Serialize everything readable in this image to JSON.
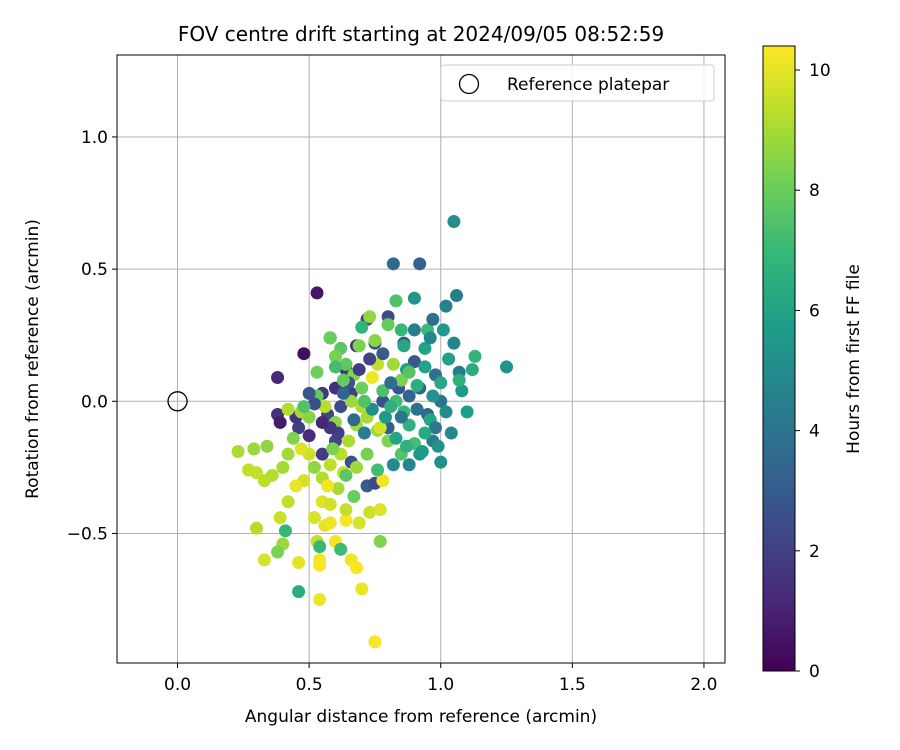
{
  "chart_data": {
    "type": "scatter",
    "title": "FOV centre drift starting at 2024/09/05 08:52:59",
    "xlabel": "Angular distance from reference (arcmin)",
    "ylabel": "Rotation from reference (arcmin)",
    "xlim": [
      -0.23,
      2.08
    ],
    "ylim": [
      -0.99,
      1.31
    ],
    "xticks": [
      0.0,
      0.5,
      1.0,
      1.5,
      2.0
    ],
    "xtick_labels": [
      "0.0",
      "0.5",
      "1.0",
      "1.5",
      "2.0"
    ],
    "yticks": [
      -0.5,
      0.0,
      0.5,
      1.0
    ],
    "ytick_labels": [
      "−0.5",
      "0.0",
      "0.5",
      "1.0"
    ],
    "grid": true,
    "legend": {
      "placement": "top-right",
      "entries": [
        "Reference platepar"
      ]
    },
    "reference_point": {
      "x": 0.0,
      "y": 0.0,
      "marker": "open-circle",
      "color": "#000000"
    },
    "colorbar": {
      "label": "Hours from first FF file",
      "min": 0,
      "max": 10.4,
      "ticks": [
        0,
        2,
        4,
        6,
        8,
        10
      ],
      "tick_labels": [
        "0",
        "2",
        "4",
        "6",
        "8",
        "10"
      ],
      "colormap": "viridis",
      "colors": [
        "#440154",
        "#482878",
        "#3e4989",
        "#31688e",
        "#26828e",
        "#1f9e89",
        "#35b779",
        "#6ece58",
        "#b5de2b",
        "#fde725"
      ]
    },
    "points": [
      {
        "x": 0.53,
        "y": 0.41,
        "c": 0.6
      },
      {
        "x": 0.48,
        "y": 0.18,
        "c": 0.4
      },
      {
        "x": 0.38,
        "y": 0.09,
        "c": 1.2
      },
      {
        "x": 0.38,
        "y": -0.05,
        "c": 1.5
      },
      {
        "x": 0.39,
        "y": -0.08,
        "c": 0.8
      },
      {
        "x": 0.45,
        "y": -0.06,
        "c": 1.6
      },
      {
        "x": 0.46,
        "y": -0.1,
        "c": 1.9
      },
      {
        "x": 0.5,
        "y": -0.13,
        "c": 1.3
      },
      {
        "x": 0.55,
        "y": 0.03,
        "c": 1.7
      },
      {
        "x": 0.57,
        "y": -0.05,
        "c": 2.1
      },
      {
        "x": 0.6,
        "y": 0.05,
        "c": 1.4
      },
      {
        "x": 0.62,
        "y": -0.02,
        "c": 2.3
      },
      {
        "x": 0.64,
        "y": 0.12,
        "c": 1.8
      },
      {
        "x": 0.66,
        "y": 0.03,
        "c": 2.0
      },
      {
        "x": 0.68,
        "y": 0.21,
        "c": 1.5
      },
      {
        "x": 0.58,
        "y": 0.24,
        "c": 2.2
      },
      {
        "x": 0.55,
        "y": -0.2,
        "c": 1.9
      },
      {
        "x": 0.6,
        "y": -0.15,
        "c": 2.4
      },
      {
        "x": 0.66,
        "y": -0.23,
        "c": 2.6
      },
      {
        "x": 0.72,
        "y": 0.31,
        "c": 2.1
      },
      {
        "x": 0.75,
        "y": 0.22,
        "c": 2.5
      },
      {
        "x": 0.8,
        "y": 0.32,
        "c": 2.4
      },
      {
        "x": 0.82,
        "y": 0.52,
        "c": 3.6
      },
      {
        "x": 0.92,
        "y": 0.52,
        "c": 3.2
      },
      {
        "x": 0.86,
        "y": 0.22,
        "c": 2.7
      },
      {
        "x": 0.9,
        "y": 0.15,
        "c": 2.9
      },
      {
        "x": 0.84,
        "y": 0.05,
        "c": 2.8
      },
      {
        "x": 0.78,
        "y": 0.0,
        "c": 2.6
      },
      {
        "x": 0.8,
        "y": -0.1,
        "c": 3.1
      },
      {
        "x": 0.72,
        "y": -0.32,
        "c": 3.0
      },
      {
        "x": 0.75,
        "y": -0.31,
        "c": 2.3
      },
      {
        "x": 0.92,
        "y": 0.05,
        "c": 3.3
      },
      {
        "x": 0.95,
        "y": -0.05,
        "c": 3.5
      },
      {
        "x": 0.98,
        "y": 0.1,
        "c": 3.8
      },
      {
        "x": 1.0,
        "y": 0.0,
        "c": 4.0
      },
      {
        "x": 1.02,
        "y": 0.36,
        "c": 4.6
      },
      {
        "x": 1.06,
        "y": 0.4,
        "c": 4.5
      },
      {
        "x": 1.05,
        "y": 0.22,
        "c": 4.7
      },
      {
        "x": 1.07,
        "y": 0.11,
        "c": 4.3
      },
      {
        "x": 1.04,
        "y": -0.12,
        "c": 4.9
      },
      {
        "x": 0.97,
        "y": -0.15,
        "c": 4.4
      },
      {
        "x": 1.0,
        "y": -0.23,
        "c": 5.2
      },
      {
        "x": 0.92,
        "y": -0.2,
        "c": 5.5
      },
      {
        "x": 0.88,
        "y": -0.24,
        "c": 4.8
      },
      {
        "x": 0.82,
        "y": -0.24,
        "c": 5.0
      },
      {
        "x": 1.05,
        "y": 0.68,
        "c": 5.1
      },
      {
        "x": 1.25,
        "y": 0.13,
        "c": 5.3
      },
      {
        "x": 1.08,
        "y": 0.04,
        "c": 5.6
      },
      {
        "x": 1.1,
        "y": -0.04,
        "c": 5.8
      },
      {
        "x": 0.9,
        "y": 0.39,
        "c": 5.4
      },
      {
        "x": 0.87,
        "y": 0.12,
        "c": 5.7
      },
      {
        "x": 0.94,
        "y": 0.2,
        "c": 6.0
      },
      {
        "x": 0.96,
        "y": -0.07,
        "c": 6.1
      },
      {
        "x": 1.12,
        "y": 0.12,
        "c": 6.4
      },
      {
        "x": 1.13,
        "y": 0.17,
        "c": 6.8
      },
      {
        "x": 1.07,
        "y": 0.08,
        "c": 6.6
      },
      {
        "x": 0.95,
        "y": 0.27,
        "c": 7.1
      },
      {
        "x": 0.85,
        "y": 0.27,
        "c": 6.9
      },
      {
        "x": 0.83,
        "y": 0.38,
        "c": 7.5
      },
      {
        "x": 0.8,
        "y": 0.29,
        "c": 7.9
      },
      {
        "x": 0.73,
        "y": 0.32,
        "c": 8.7
      },
      {
        "x": 0.75,
        "y": 0.23,
        "c": 8.6
      },
      {
        "x": 0.69,
        "y": 0.21,
        "c": 8.3
      },
      {
        "x": 0.62,
        "y": 0.2,
        "c": 7.7
      },
      {
        "x": 0.58,
        "y": 0.24,
        "c": 8.0
      },
      {
        "x": 0.6,
        "y": 0.17,
        "c": 8.2
      },
      {
        "x": 0.64,
        "y": 0.14,
        "c": 7.8
      },
      {
        "x": 0.67,
        "y": 0.1,
        "c": 8.5
      },
      {
        "x": 0.7,
        "y": 0.05,
        "c": 8.1
      },
      {
        "x": 0.74,
        "y": 0.09,
        "c": 10.2
      },
      {
        "x": 0.78,
        "y": 0.04,
        "c": 7.4
      },
      {
        "x": 0.83,
        "y": 0.0,
        "c": 7.2
      },
      {
        "x": 0.86,
        "y": -0.04,
        "c": 7.0
      },
      {
        "x": 0.88,
        "y": -0.09,
        "c": 6.7
      },
      {
        "x": 0.9,
        "y": -0.16,
        "c": 7.3
      },
      {
        "x": 0.85,
        "y": -0.2,
        "c": 7.6
      },
      {
        "x": 0.8,
        "y": -0.15,
        "c": 8.4
      },
      {
        "x": 0.76,
        "y": -0.11,
        "c": 8.8
      },
      {
        "x": 0.72,
        "y": -0.06,
        "c": 9.0
      },
      {
        "x": 0.68,
        "y": -0.09,
        "c": 8.9
      },
      {
        "x": 0.65,
        "y": -0.15,
        "c": 9.1
      },
      {
        "x": 0.62,
        "y": -0.2,
        "c": 9.3
      },
      {
        "x": 0.58,
        "y": -0.24,
        "c": 9.4
      },
      {
        "x": 0.55,
        "y": -0.29,
        "c": 9.2
      },
      {
        "x": 0.52,
        "y": -0.25,
        "c": 8.7
      },
      {
        "x": 0.5,
        "y": -0.2,
        "c": 9.6
      },
      {
        "x": 0.47,
        "y": -0.18,
        "c": 9.9
      },
      {
        "x": 0.44,
        "y": -0.14,
        "c": 8.4
      },
      {
        "x": 0.42,
        "y": -0.2,
        "c": 8.9
      },
      {
        "x": 0.4,
        "y": -0.25,
        "c": 9.0
      },
      {
        "x": 0.36,
        "y": -0.28,
        "c": 9.2
      },
      {
        "x": 0.33,
        "y": -0.3,
        "c": 9.3
      },
      {
        "x": 0.3,
        "y": -0.27,
        "c": 9.5
      },
      {
        "x": 0.27,
        "y": -0.26,
        "c": 9.4
      },
      {
        "x": 0.23,
        "y": -0.19,
        "c": 9.1
      },
      {
        "x": 0.29,
        "y": -0.18,
        "c": 8.8
      },
      {
        "x": 0.34,
        "y": -0.17,
        "c": 8.6
      },
      {
        "x": 0.42,
        "y": -0.03,
        "c": 9.2
      },
      {
        "x": 0.47,
        "y": -0.04,
        "c": 9.0
      },
      {
        "x": 0.5,
        "y": -0.06,
        "c": 8.5
      },
      {
        "x": 0.53,
        "y": 0.02,
        "c": 7.9
      },
      {
        "x": 0.53,
        "y": 0.11,
        "c": 8.1
      },
      {
        "x": 0.56,
        "y": -0.02,
        "c": 9.3
      },
      {
        "x": 0.48,
        "y": -0.3,
        "c": 9.7
      },
      {
        "x": 0.45,
        "y": -0.32,
        "c": 10.1
      },
      {
        "x": 0.42,
        "y": -0.38,
        "c": 9.4
      },
      {
        "x": 0.39,
        "y": -0.44,
        "c": 9.6
      },
      {
        "x": 0.3,
        "y": -0.48,
        "c": 9.2
      },
      {
        "x": 0.33,
        "y": -0.6,
        "c": 9.8
      },
      {
        "x": 0.4,
        "y": -0.54,
        "c": 8.8
      },
      {
        "x": 0.38,
        "y": -0.57,
        "c": 8.3
      },
      {
        "x": 0.41,
        "y": -0.49,
        "c": 6.9
      },
      {
        "x": 0.46,
        "y": -0.61,
        "c": 10.0
      },
      {
        "x": 0.46,
        "y": -0.72,
        "c": 6.4
      },
      {
        "x": 0.53,
        "y": -0.53,
        "c": 9.5
      },
      {
        "x": 0.54,
        "y": -0.55,
        "c": 7.0
      },
      {
        "x": 0.54,
        "y": -0.6,
        "c": 10.2
      },
      {
        "x": 0.54,
        "y": -0.62,
        "c": 10.3
      },
      {
        "x": 0.54,
        "y": -0.75,
        "c": 10.1
      },
      {
        "x": 0.56,
        "y": -0.47,
        "c": 10.0
      },
      {
        "x": 0.52,
        "y": -0.44,
        "c": 9.8
      },
      {
        "x": 0.55,
        "y": -0.38,
        "c": 9.9
      },
      {
        "x": 0.58,
        "y": -0.46,
        "c": 10.1
      },
      {
        "x": 0.58,
        "y": -0.39,
        "c": 9.7
      },
      {
        "x": 0.6,
        "y": -0.53,
        "c": 10.2
      },
      {
        "x": 0.62,
        "y": -0.56,
        "c": 7.1
      },
      {
        "x": 0.64,
        "y": -0.45,
        "c": 10.3
      },
      {
        "x": 0.64,
        "y": -0.41,
        "c": 9.5
      },
      {
        "x": 0.66,
        "y": -0.6,
        "c": 10.2
      },
      {
        "x": 0.68,
        "y": -0.63,
        "c": 10.3
      },
      {
        "x": 0.69,
        "y": -0.46,
        "c": 9.8
      },
      {
        "x": 0.7,
        "y": -0.71,
        "c": 10.1
      },
      {
        "x": 0.73,
        "y": -0.42,
        "c": 9.6
      },
      {
        "x": 0.77,
        "y": -0.41,
        "c": 9.9
      },
      {
        "x": 0.75,
        "y": -0.91,
        "c": 10.3
      },
      {
        "x": 0.77,
        "y": -0.53,
        "c": 8.4
      },
      {
        "x": 0.78,
        "y": -0.3,
        "c": 10.2
      },
      {
        "x": 0.67,
        "y": -0.36,
        "c": 8.0
      },
      {
        "x": 0.61,
        "y": -0.33,
        "c": 9.0
      },
      {
        "x": 0.57,
        "y": -0.32,
        "c": 10.2
      },
      {
        "x": 0.63,
        "y": -0.27,
        "c": 9.6
      },
      {
        "x": 0.68,
        "y": -0.25,
        "c": 8.9
      },
      {
        "x": 0.72,
        "y": -0.2,
        "c": 8.2
      },
      {
        "x": 0.76,
        "y": -0.26,
        "c": 7.2
      },
      {
        "x": 0.77,
        "y": -0.1,
        "c": 9.7
      },
      {
        "x": 0.7,
        "y": -0.02,
        "c": 9.1
      },
      {
        "x": 0.66,
        "y": 0.0,
        "c": 8.8
      },
      {
        "x": 0.6,
        "y": -0.08,
        "c": 8.6
      },
      {
        "x": 0.76,
        "y": 0.14,
        "c": 9.4
      },
      {
        "x": 0.82,
        "y": 0.14,
        "c": 8.9
      },
      {
        "x": 0.85,
        "y": 0.08,
        "c": 8.3
      },
      {
        "x": 0.88,
        "y": 0.11,
        "c": 7.6
      },
      {
        "x": 0.91,
        "y": 0.06,
        "c": 6.5
      },
      {
        "x": 0.94,
        "y": 0.13,
        "c": 5.9
      },
      {
        "x": 0.97,
        "y": 0.02,
        "c": 5.4
      },
      {
        "x": 1.0,
        "y": 0.07,
        "c": 6.2
      },
      {
        "x": 1.02,
        "y": -0.04,
        "c": 5.0
      },
      {
        "x": 0.98,
        "y": -0.1,
        "c": 4.2
      },
      {
        "x": 0.94,
        "y": -0.12,
        "c": 6.3
      },
      {
        "x": 0.91,
        "y": -0.03,
        "c": 3.9
      },
      {
        "x": 0.88,
        "y": 0.02,
        "c": 3.4
      },
      {
        "x": 0.85,
        "y": -0.06,
        "c": 4.1
      },
      {
        "x": 0.81,
        "y": 0.07,
        "c": 3.7
      },
      {
        "x": 0.78,
        "y": 0.18,
        "c": 3.0
      },
      {
        "x": 0.73,
        "y": 0.16,
        "c": 2.2
      },
      {
        "x": 0.69,
        "y": 0.12,
        "c": 1.9
      },
      {
        "x": 0.65,
        "y": 0.07,
        "c": 2.7
      },
      {
        "x": 0.63,
        "y": 0.03,
        "c": 3.3
      },
      {
        "x": 0.61,
        "y": -0.12,
        "c": 2.0
      },
      {
        "x": 0.58,
        "y": -0.1,
        "c": 1.6
      },
      {
        "x": 0.55,
        "y": -0.08,
        "c": 1.1
      },
      {
        "x": 0.52,
        "y": -0.01,
        "c": 2.5
      },
      {
        "x": 0.5,
        "y": 0.03,
        "c": 2.8
      },
      {
        "x": 0.67,
        "y": -0.07,
        "c": 3.6
      },
      {
        "x": 0.71,
        "y": -0.12,
        "c": 4.4
      },
      {
        "x": 0.74,
        "y": -0.03,
        "c": 5.1
      },
      {
        "x": 0.79,
        "y": -0.06,
        "c": 5.7
      },
      {
        "x": 0.83,
        "y": -0.14,
        "c": 6.1
      },
      {
        "x": 0.87,
        "y": -0.17,
        "c": 6.6
      },
      {
        "x": 0.93,
        "y": -0.19,
        "c": 5.6
      },
      {
        "x": 0.99,
        "y": -0.17,
        "c": 5.3
      },
      {
        "x": 1.03,
        "y": 0.16,
        "c": 6.0
      },
      {
        "x": 0.96,
        "y": 0.24,
        "c": 4.8
      },
      {
        "x": 0.9,
        "y": 0.27,
        "c": 4.5
      },
      {
        "x": 0.86,
        "y": 0.21,
        "c": 6.2
      },
      {
        "x": 0.97,
        "y": 0.31,
        "c": 3.8
      },
      {
        "x": 1.01,
        "y": 0.27,
        "c": 5.6
      },
      {
        "x": 0.63,
        "y": 0.08,
        "c": 7.9
      },
      {
        "x": 0.71,
        "y": 0.0,
        "c": 7.5
      },
      {
        "x": 0.64,
        "y": -0.28,
        "c": 7.7
      },
      {
        "x": 0.59,
        "y": -0.18,
        "c": 8.3
      },
      {
        "x": 0.48,
        "y": -0.02,
        "c": 7.5
      },
      {
        "x": 0.7,
        "y": 0.28,
        "c": 6.8
      },
      {
        "x": 0.6,
        "y": 0.13,
        "c": 7.2
      },
      {
        "x": 0.81,
        "y": -0.02,
        "c": 6.6
      }
    ]
  }
}
